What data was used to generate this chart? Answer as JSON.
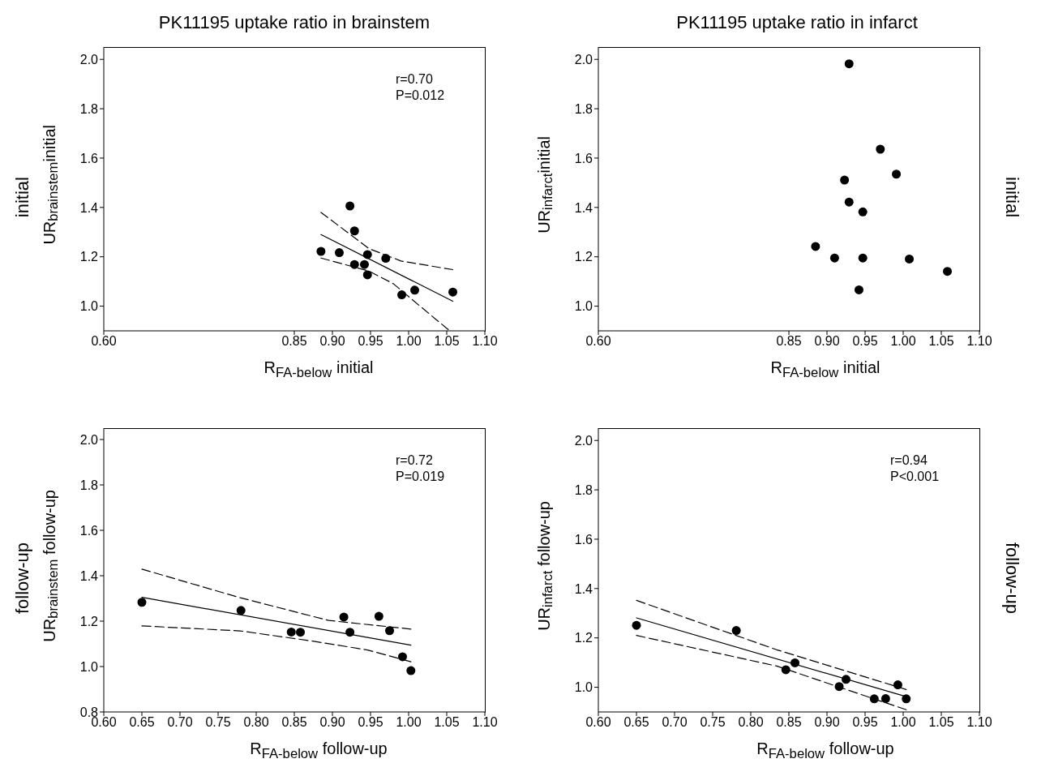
{
  "chart_data": [
    {
      "type": "scatter",
      "title": "PK11195 uptake ratio in brainstem",
      "xlabel": "R$_{FA-below}$ initial",
      "ylabel": "UR$_{brainstem}$initial",
      "annotations": [
        "initial",
        "r=0.70\nP=0.012"
      ],
      "legend": false,
      "grid": false,
      "xlim": [
        0.6,
        1.1
      ],
      "xticks": [
        {
          "value": 0.6,
          "label": "0.60"
        },
        {
          "value": 0.85,
          "label": "0.85"
        },
        {
          "value": 0.9,
          "label": "0.90"
        },
        {
          "value": 0.95,
          "label": "0.95"
        },
        {
          "value": 1.0,
          "label": "1.00"
        },
        {
          "value": 1.05,
          "label": "1.05"
        },
        {
          "value": 1.1,
          "label": "1.10"
        }
      ],
      "ylim": [
        0.9,
        2.05
      ],
      "yticks": [
        {
          "value": 1.0,
          "label": "1.0"
        },
        {
          "value": 1.2,
          "label": "1.2"
        },
        {
          "value": 1.4,
          "label": "1.4"
        },
        {
          "value": 1.6,
          "label": "1.6"
        },
        {
          "value": 1.8,
          "label": "1.8"
        },
        {
          "value": 2.0,
          "label": "2.0"
        }
      ],
      "series": [
        {
          "type": "scatter",
          "marker": "circle",
          "color": "#000000",
          "x": [
            0.885,
            0.909,
            0.923,
            0.929,
            0.929,
            0.942,
            0.946,
            0.946,
            0.97,
            0.991,
            1.008,
            1.058
          ],
          "values": [
            1.222,
            1.217,
            1.406,
            1.305,
            1.169,
            1.169,
            1.209,
            1.127,
            1.194,
            1.046,
            1.065,
            1.057
          ]
        },
        {
          "type": "line",
          "color": "#000000",
          "line_style": "solid",
          "x": [
            0.885,
            1.058
          ],
          "values": [
            1.29,
            1.02
          ]
        },
        {
          "type": "line",
          "color": "#000000",
          "line_style": "dashed",
          "x": [
            0.885,
            0.948,
            0.99,
            1.058
          ],
          "values": [
            1.38,
            1.233,
            1.183,
            1.148
          ]
        },
        {
          "type": "line",
          "color": "#000000",
          "line_style": "dashed",
          "x": [
            0.885,
            0.948,
            0.98,
            1.001,
            1.052
          ],
          "values": [
            1.195,
            1.142,
            1.091,
            1.036,
            0.905
          ]
        }
      ]
    },
    {
      "type": "scatter",
      "title": "PK11195 uptake ratio in infarct",
      "xlabel": "R$_{FA-below}$ initial",
      "ylabel": "UR$_{infarct}$initial",
      "annotations": [
        "initial"
      ],
      "legend": false,
      "grid": false,
      "xlim": [
        0.6,
        1.1
      ],
      "xticks": [
        {
          "value": 0.6,
          "label": "0.60"
        },
        {
          "value": 0.85,
          "label": "0.85"
        },
        {
          "value": 0.9,
          "label": "0.90"
        },
        {
          "value": 0.95,
          "label": "0.95"
        },
        {
          "value": 1.0,
          "label": "1.00"
        },
        {
          "value": 1.05,
          "label": "1.05"
        },
        {
          "value": 1.1,
          "label": "1.10"
        }
      ],
      "ylim": [
        0.9,
        2.05
      ],
      "yticks": [
        {
          "value": 1.0,
          "label": "1.0"
        },
        {
          "value": 1.2,
          "label": "1.2"
        },
        {
          "value": 1.4,
          "label": "1.4"
        },
        {
          "value": 1.6,
          "label": "1.6"
        },
        {
          "value": 1.8,
          "label": "1.8"
        },
        {
          "value": 2.0,
          "label": "2.0"
        }
      ],
      "series": [
        {
          "type": "scatter",
          "marker": "circle",
          "color": "#000000",
          "x": [
            0.885,
            0.91,
            0.923,
            0.929,
            0.929,
            0.942,
            0.947,
            0.947,
            0.97,
            0.991,
            1.008,
            1.058
          ],
          "values": [
            1.242,
            1.195,
            1.511,
            1.982,
            1.422,
            1.066,
            1.382,
            1.195,
            1.636,
            1.535,
            1.191,
            1.141
          ]
        }
      ]
    },
    {
      "type": "scatter",
      "xlabel": "R$_{FA-below}$ follow-up",
      "ylabel": "UR$_{brainstem}$ follow-up",
      "annotations": [
        "follow-up",
        "r=0.72\nP=0.019"
      ],
      "legend": false,
      "grid": false,
      "xlim": [
        0.6,
        1.1
      ],
      "xticks": [
        {
          "value": 0.6,
          "label": "0.60"
        },
        {
          "value": 0.65,
          "label": "0.65"
        },
        {
          "value": 0.7,
          "label": "0.70"
        },
        {
          "value": 0.75,
          "label": "0.75"
        },
        {
          "value": 0.8,
          "label": "0.80"
        },
        {
          "value": 0.85,
          "label": "0.85"
        },
        {
          "value": 0.9,
          "label": "0.90"
        },
        {
          "value": 0.95,
          "label": "0.95"
        },
        {
          "value": 1.0,
          "label": "1.00"
        },
        {
          "value": 1.05,
          "label": "1.05"
        },
        {
          "value": 1.1,
          "label": "1.10"
        }
      ],
      "ylim": [
        0.8,
        2.05
      ],
      "yticks": [
        {
          "value": 0.8,
          "label": "0.8"
        },
        {
          "value": 1.0,
          "label": "1.0"
        },
        {
          "value": 1.2,
          "label": "1.2"
        },
        {
          "value": 1.4,
          "label": "1.4"
        },
        {
          "value": 1.6,
          "label": "1.6"
        },
        {
          "value": 1.8,
          "label": "1.8"
        },
        {
          "value": 2.0,
          "label": "2.0"
        }
      ],
      "series": [
        {
          "type": "scatter",
          "marker": "circle",
          "color": "#000000",
          "x": [
            0.65,
            0.78,
            0.846,
            0.858,
            0.915,
            0.923,
            0.961,
            0.975,
            0.992,
            1.003
          ],
          "values": [
            1.283,
            1.247,
            1.152,
            1.151,
            1.218,
            1.151,
            1.221,
            1.158,
            1.043,
            0.982
          ]
        },
        {
          "type": "line",
          "color": "#000000",
          "line_style": "solid",
          "x": [
            0.65,
            1.003
          ],
          "values": [
            1.305,
            1.094
          ]
        },
        {
          "type": "line",
          "color": "#000000",
          "line_style": "dashed",
          "x": [
            0.65,
            0.779,
            0.895,
            1.003
          ],
          "values": [
            1.429,
            1.303,
            1.203,
            1.165
          ]
        },
        {
          "type": "line",
          "color": "#000000",
          "line_style": "dashed",
          "x": [
            0.65,
            0.779,
            0.874,
            0.946,
            1.003
          ],
          "values": [
            1.179,
            1.157,
            1.112,
            1.073,
            1.021
          ]
        }
      ]
    },
    {
      "type": "scatter",
      "xlabel": "R$_{FA-below}$ follow-up",
      "ylabel": "UR$_{infarct}$ follow-up",
      "annotations": [
        "follow-up",
        "r=0.94\nP<0.001"
      ],
      "legend": false,
      "grid": false,
      "xlim": [
        0.6,
        1.1
      ],
      "xticks": [
        {
          "value": 0.6,
          "label": "0.60"
        },
        {
          "value": 0.65,
          "label": "0.65"
        },
        {
          "value": 0.7,
          "label": "0.70"
        },
        {
          "value": 0.75,
          "label": "0.75"
        },
        {
          "value": 0.8,
          "label": "0.80"
        },
        {
          "value": 0.85,
          "label": "0.85"
        },
        {
          "value": 0.9,
          "label": "0.90"
        },
        {
          "value": 0.95,
          "label": "0.95"
        },
        {
          "value": 1.0,
          "label": "1.00"
        },
        {
          "value": 1.05,
          "label": "1.05"
        },
        {
          "value": 1.1,
          "label": "1.10"
        }
      ],
      "ylim": [
        0.9,
        2.05
      ],
      "yticks": [
        {
          "value": 1.0,
          "label": "1.0"
        },
        {
          "value": 1.2,
          "label": "1.2"
        },
        {
          "value": 1.4,
          "label": "1.4"
        },
        {
          "value": 1.6,
          "label": "1.6"
        },
        {
          "value": 1.8,
          "label": "1.8"
        },
        {
          "value": 2.0,
          "label": "2.0"
        }
      ],
      "series": [
        {
          "type": "scatter",
          "marker": "circle",
          "color": "#000000",
          "x": [
            0.65,
            0.781,
            0.846,
            0.858,
            0.916,
            0.925,
            0.962,
            0.977,
            0.993,
            1.004
          ],
          "values": [
            1.251,
            1.23,
            1.071,
            1.099,
            1.003,
            1.032,
            0.953,
            0.954,
            1.01,
            0.953
          ]
        },
        {
          "type": "line",
          "color": "#000000",
          "line_style": "solid",
          "x": [
            0.65,
            1.004
          ],
          "values": [
            1.281,
            0.962
          ]
        },
        {
          "type": "line",
          "color": "#000000",
          "line_style": "dashed",
          "x": [
            0.65,
            0.834,
            1.004
          ],
          "values": [
            1.352,
            1.152,
            0.991
          ]
        },
        {
          "type": "line",
          "color": "#000000",
          "line_style": "dashed",
          "x": [
            0.65,
            0.834,
            1.004
          ],
          "values": [
            1.21,
            1.086,
            0.909
          ]
        }
      ]
    }
  ]
}
